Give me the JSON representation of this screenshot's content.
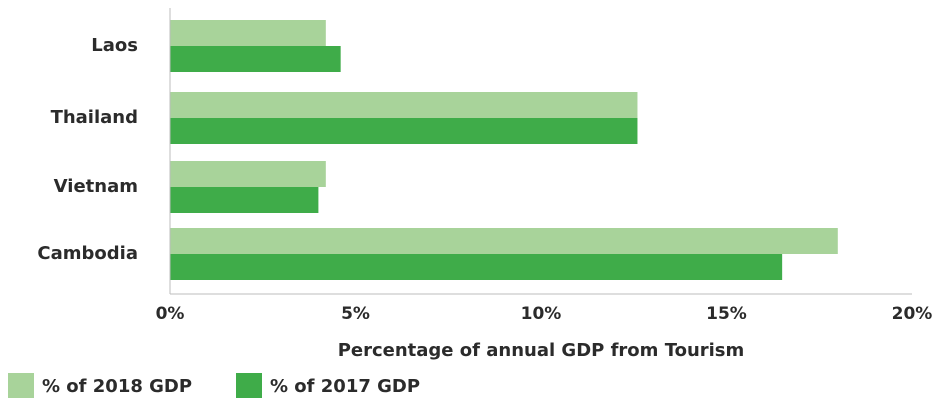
{
  "chart_data": {
    "type": "bar",
    "orientation": "horizontal",
    "categories": [
      "Laos",
      "Thailand",
      "Vietnam",
      "Cambodia"
    ],
    "series": [
      {
        "name": "% of 2018 GDP",
        "color": "#a8d39a",
        "values": [
          4.2,
          12.6,
          4.2,
          18.0
        ]
      },
      {
        "name": "% of 2017 GDP",
        "color": "#3fac49",
        "values": [
          4.6,
          12.6,
          4.0,
          16.5
        ]
      }
    ],
    "xlabel": "Percentage of annual GDP from Tourism",
    "ylabel": "",
    "xlim": [
      0,
      20
    ],
    "xticks": [
      0,
      5,
      10,
      15,
      20
    ],
    "xtick_labels": [
      "0%",
      "5%",
      "10%",
      "15%",
      "20%"
    ],
    "grid": false,
    "legend_position": "bottom-left"
  }
}
